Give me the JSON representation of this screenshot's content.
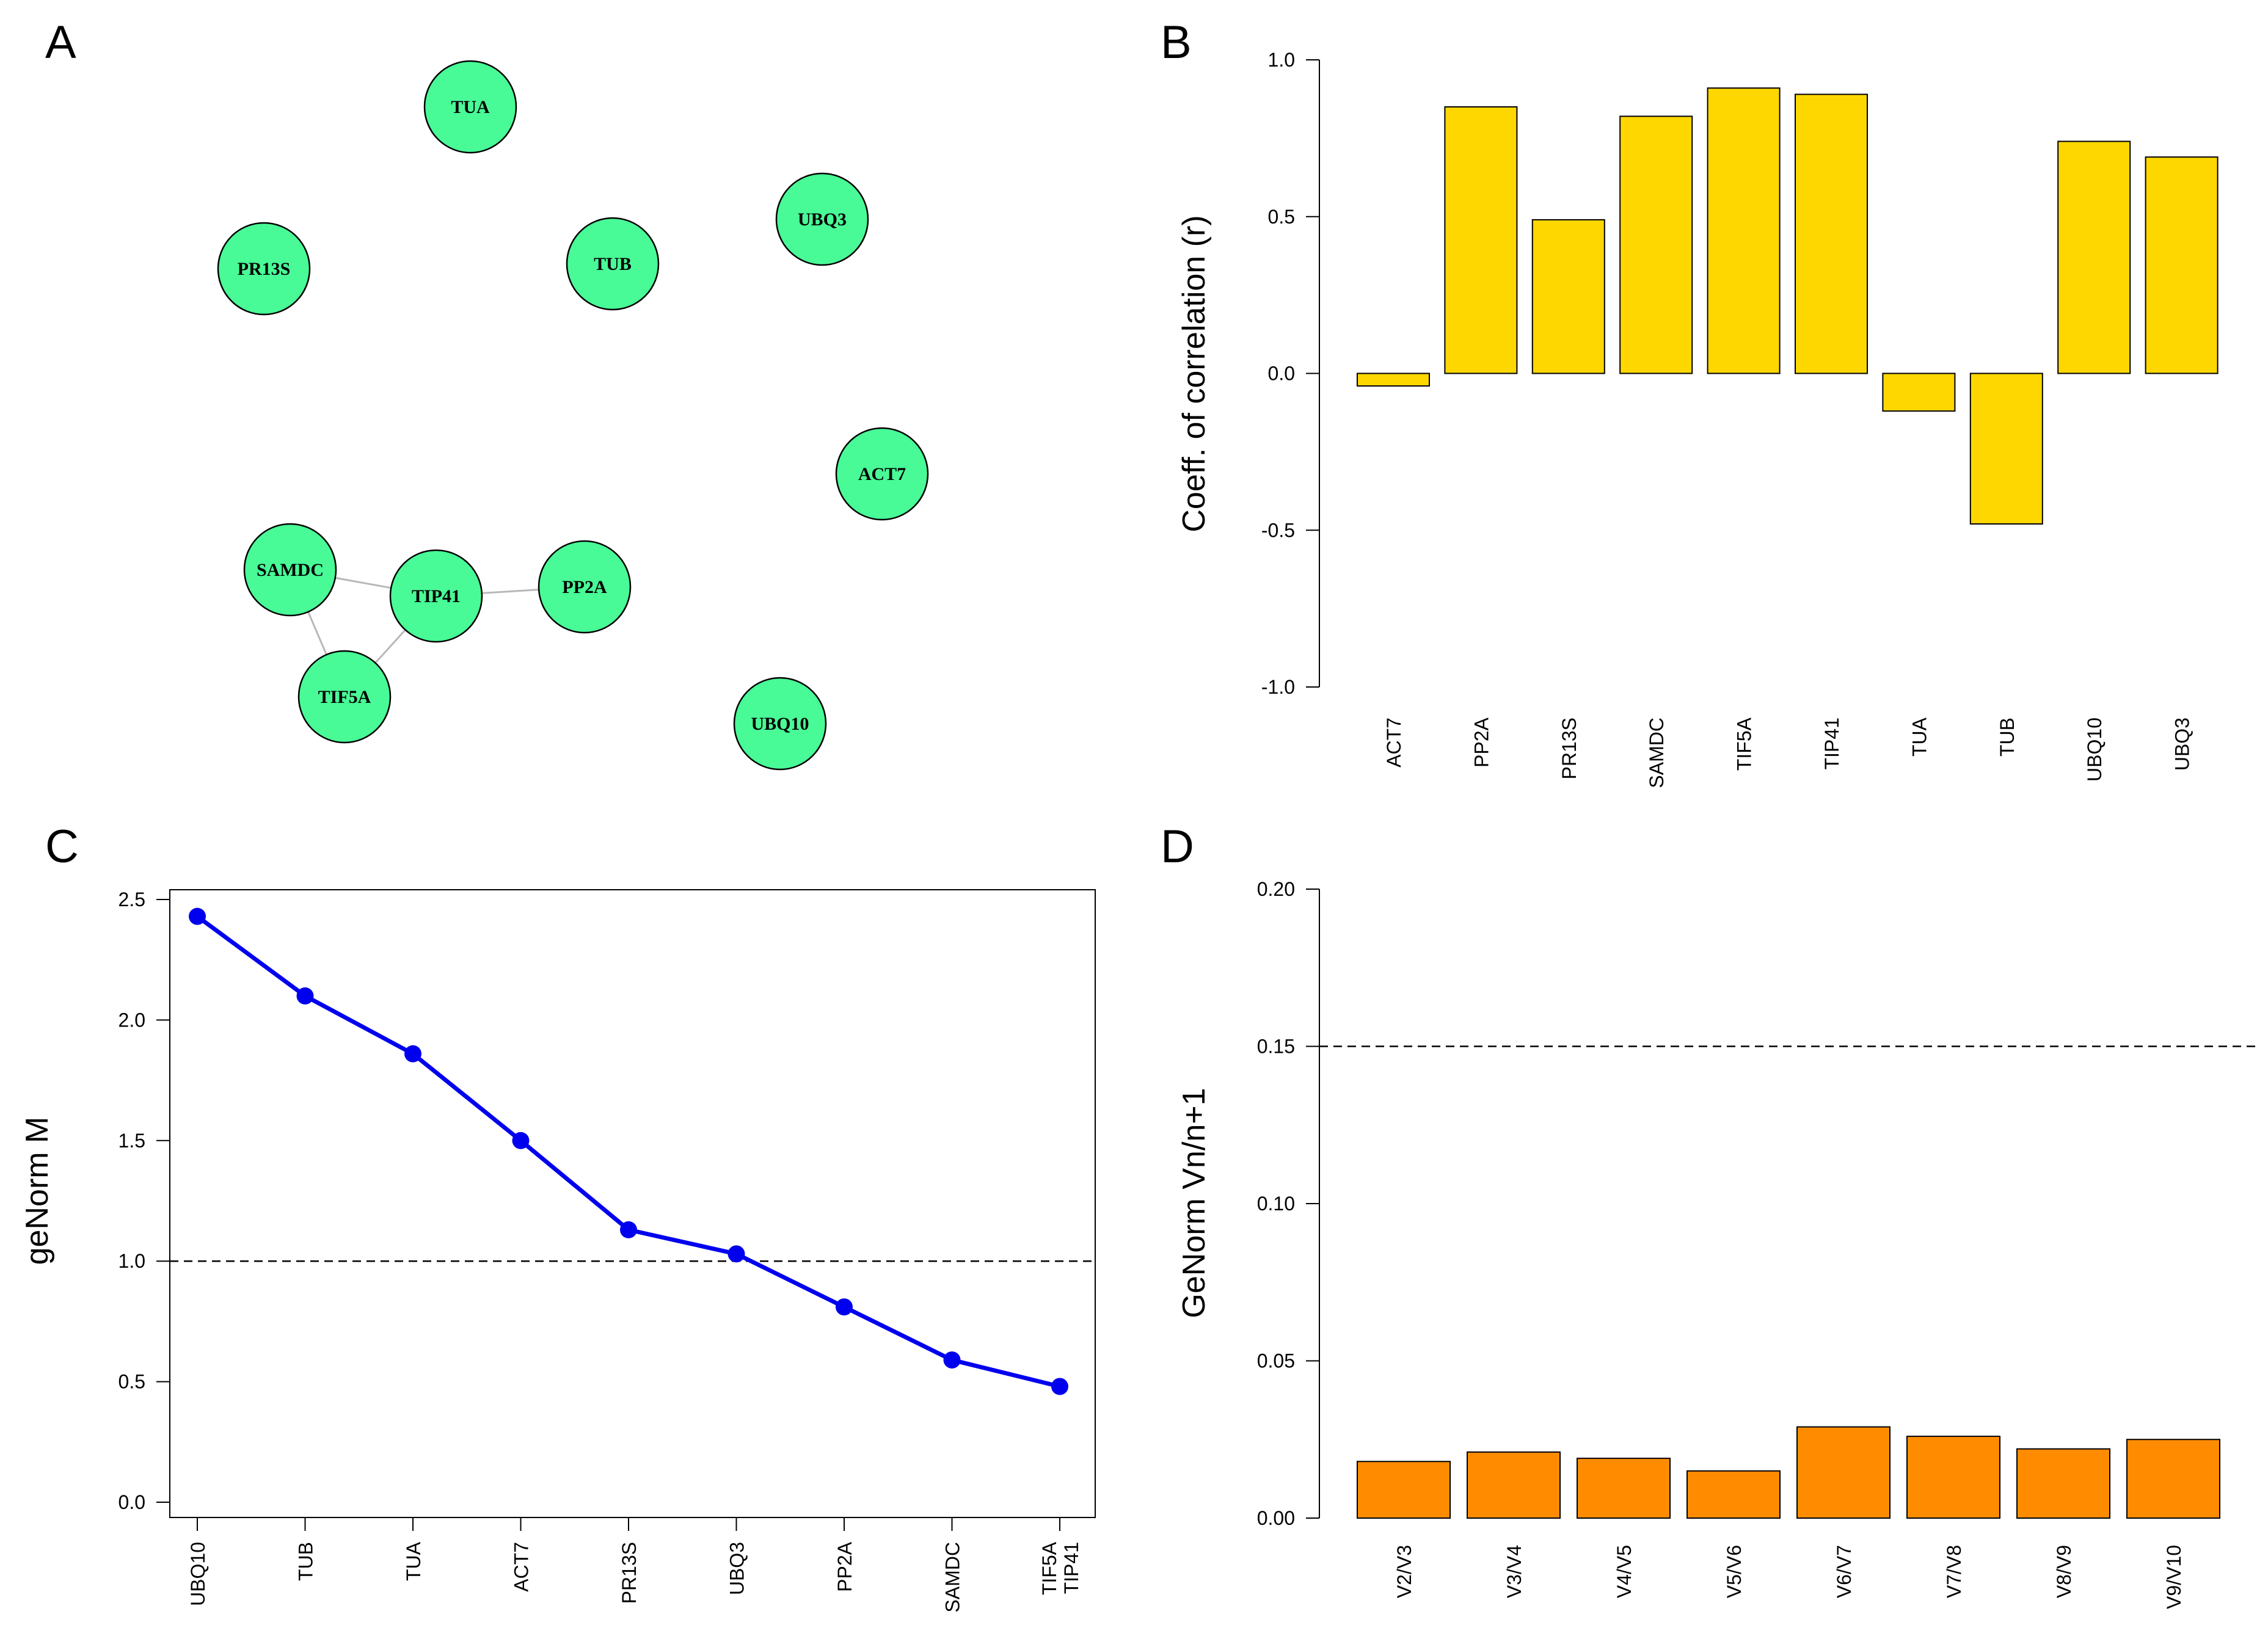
{
  "panels": {
    "A": {
      "letter": "A",
      "type": "network",
      "node_color": "#48FB97",
      "edge_color": "#b8b8b8",
      "nodes": [
        {
          "id": "TUA",
          "label": "TUA"
        },
        {
          "id": "UBQ3",
          "label": "UBQ3"
        },
        {
          "id": "PR13S",
          "label": "PR13S"
        },
        {
          "id": "TUB",
          "label": "TUB"
        },
        {
          "id": "ACT7",
          "label": "ACT7"
        },
        {
          "id": "SAMDC",
          "label": "SAMDC"
        },
        {
          "id": "TIP41",
          "label": "TIP41"
        },
        {
          "id": "PP2A",
          "label": "PP2A"
        },
        {
          "id": "TIF5A",
          "label": "TIF5A"
        },
        {
          "id": "UBQ10",
          "label": "UBQ10"
        }
      ],
      "edges": [
        [
          "SAMDC",
          "TIP41"
        ],
        [
          "SAMDC",
          "TIF5A"
        ],
        [
          "TIF5A",
          "TIP41"
        ],
        [
          "TIP41",
          "PP2A"
        ]
      ]
    }
  },
  "chart_data": [
    {
      "panel": "B",
      "letter": "B",
      "type": "bar",
      "title": "",
      "xlabel": "",
      "ylabel": "Coeff. of correlation (r)",
      "ylim": [
        -1.0,
        1.0
      ],
      "yticks": [
        "-1.0",
        "-0.5",
        "0.0",
        "0.5",
        "1.0"
      ],
      "categories": [
        "ACT7",
        "PP2A",
        "PR13S",
        "SAMDC",
        "TIF5A",
        "TIP41",
        "TUA",
        "TUB",
        "UBQ10",
        "UBQ3"
      ],
      "values": [
        -0.04,
        0.85,
        0.49,
        0.82,
        0.91,
        0.89,
        -0.12,
        -0.48,
        0.74,
        0.69
      ],
      "bar_color": "#FED700"
    },
    {
      "panel": "C",
      "letter": "C",
      "type": "line",
      "title": "",
      "xlabel": "",
      "ylabel": "geNorm M",
      "ylim": [
        0.0,
        2.5
      ],
      "yticks": [
        "0.0",
        "0.5",
        "1.0",
        "1.5",
        "2.0",
        "2.5"
      ],
      "categories": [
        [
          "UBQ10"
        ],
        [
          "TUB"
        ],
        [
          "TUA"
        ],
        [
          "ACT7"
        ],
        [
          "PR13S"
        ],
        [
          "UBQ3"
        ],
        [
          "PP2A"
        ],
        [
          "SAMDC"
        ],
        [
          "TIF5A",
          "TIP41"
        ]
      ],
      "values": [
        2.43,
        2.1,
        1.86,
        1.5,
        1.13,
        1.03,
        0.81,
        0.59,
        0.48
      ],
      "reference_line": 1.0,
      "line_color": "#0000ee"
    },
    {
      "panel": "D",
      "letter": "D",
      "type": "bar",
      "title": "",
      "xlabel": "",
      "ylabel": "GeNorm Vn/n+1",
      "ylim": [
        0.0,
        0.2
      ],
      "yticks": [
        "0.00",
        "0.05",
        "0.10",
        "0.15",
        "0.20"
      ],
      "categories": [
        "V2/V3",
        "V3/V4",
        "V4/V5",
        "V5/V6",
        "V6/V7",
        "V7/V8",
        "V8/V9",
        "V9/V10"
      ],
      "values": [
        0.018,
        0.021,
        0.019,
        0.015,
        0.029,
        0.026,
        0.022,
        0.025
      ],
      "reference_line": 0.15,
      "bar_color": "#FF8C00"
    }
  ]
}
